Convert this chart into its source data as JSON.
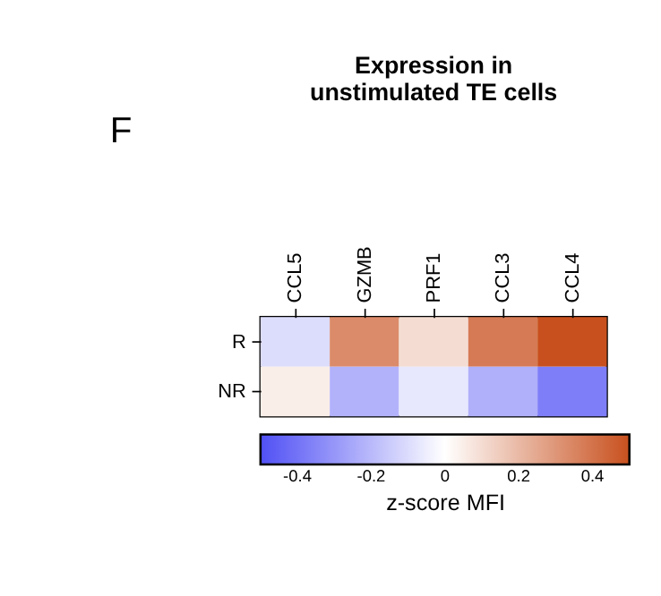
{
  "chart_data": {
    "type": "heatmap",
    "title": "Expression in unstimulated TE cells",
    "annotations": [
      "F"
    ],
    "categories": [
      "CCL5",
      "GZMB",
      "PRF1",
      "CCL3",
      "CCL4"
    ],
    "y_categories": [
      "R",
      "NR"
    ],
    "cells": [
      [
        -0.1,
        0.33,
        0.1,
        0.38,
        0.5
      ],
      [
        0.05,
        -0.22,
        -0.07,
        -0.23,
        -0.37
      ]
    ],
    "clabel": "z-score MFI",
    "clim": [
      -0.5,
      0.5
    ],
    "cticks": [
      -0.4,
      -0.2,
      0,
      0.2,
      0.4
    ],
    "colors": [
      "#5050f5",
      "#ffffff",
      "#c8501e"
    ]
  }
}
